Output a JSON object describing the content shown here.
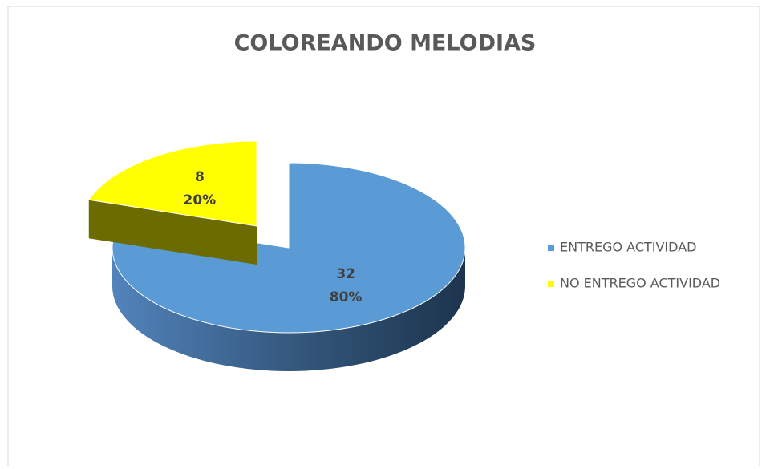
{
  "chart_data": {
    "type": "pie",
    "title": "COLOREANDO MELODIAS",
    "categories": [
      "ENTREGO ACTIVIDAD",
      "NO ENTREGO ACTIVIDAD"
    ],
    "values": [
      32,
      8
    ],
    "percentages": [
      {
        "value": 80,
        "label": "80%"
      },
      {
        "value": 20,
        "label": "20%"
      }
    ],
    "colors": [
      "#5b9bd5",
      "#ffff00"
    ],
    "legend": "right"
  }
}
